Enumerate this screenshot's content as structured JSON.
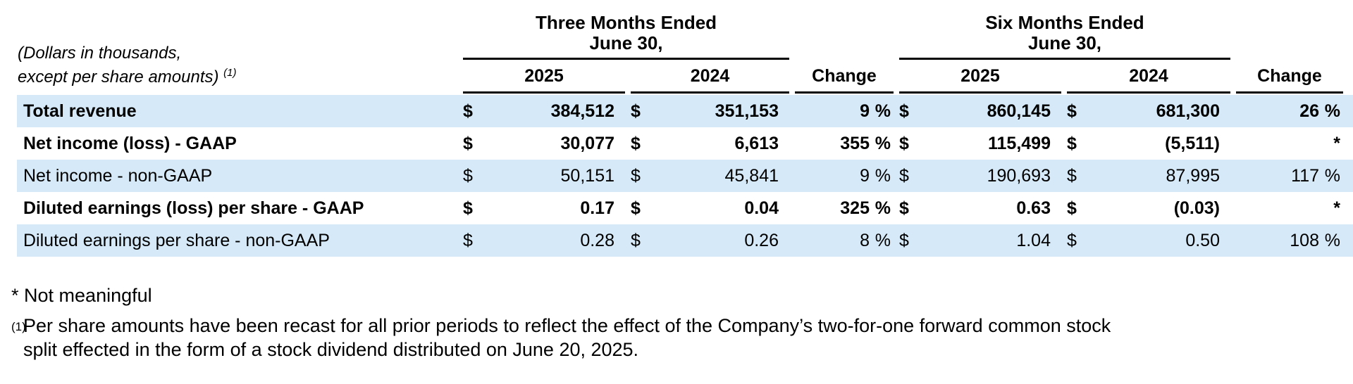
{
  "table": {
    "stub_note": {
      "line1": "(Dollars in thousands,",
      "line2": "except per share amounts)",
      "superscript": "(1)"
    },
    "currency_symbol": "$",
    "groups": {
      "three_months": {
        "title_line1": "Three Months Ended",
        "title_line2": "June 30,"
      },
      "six_months": {
        "title_line1": "Six Months Ended",
        "title_line2": "June 30,"
      }
    },
    "columns": {
      "tm_2025": "2025",
      "tm_2024": "2024",
      "tm_change": "Change",
      "sm_2025": "2025",
      "sm_2024": "2024",
      "sm_change": "Change"
    },
    "rows": [
      {
        "label": "Total revenue",
        "tm_2025": "384,512",
        "tm_2024": "351,153",
        "tm_change": {
          "value": "9",
          "suffix": "%"
        },
        "sm_2025": "860,145",
        "sm_2024": "681,300",
        "sm_change": {
          "value": "26",
          "suffix": "%"
        }
      },
      {
        "label": "Net income (loss) - GAAP",
        "tm_2025": "30,077",
        "tm_2024": "6,613",
        "tm_change": {
          "value": "355",
          "suffix": "%"
        },
        "sm_2025": "115,499",
        "sm_2024": "(5,511)",
        "sm_change": {
          "value": "",
          "suffix": "*"
        }
      },
      {
        "label": "Net income - non-GAAP",
        "tm_2025": "50,151",
        "tm_2024": "45,841",
        "tm_change": {
          "value": "9",
          "suffix": "%"
        },
        "sm_2025": "190,693",
        "sm_2024": "87,995",
        "sm_change": {
          "value": "117",
          "suffix": "%"
        }
      },
      {
        "label": "Diluted earnings (loss) per share - GAAP",
        "tm_2025": "0.17",
        "tm_2024": "0.04",
        "tm_change": {
          "value": "325",
          "suffix": "%"
        },
        "sm_2025": "0.63",
        "sm_2024": "(0.03)",
        "sm_change": {
          "value": "",
          "suffix": "*"
        }
      },
      {
        "label": "Diluted earnings per share - non-GAAP",
        "tm_2025": "0.28",
        "tm_2024": "0.26",
        "tm_change": {
          "value": "8",
          "suffix": "%"
        },
        "sm_2025": "1.04",
        "sm_2024": "0.50",
        "sm_change": {
          "value": "108",
          "suffix": "%"
        }
      }
    ]
  },
  "footnotes": {
    "star": {
      "marker": "*",
      "text": "Not meaningful"
    },
    "one": {
      "marker": "(1)",
      "line1": "Per share amounts have been recast for all prior periods to reflect the effect of the Company’s two-for-one forward common stock",
      "line2": "split effected in the form of a stock dividend distributed on June 20, 2025."
    }
  },
  "colors": {
    "row_highlight": "#d5e9f8",
    "text": "#000000",
    "rule": "#000000"
  }
}
